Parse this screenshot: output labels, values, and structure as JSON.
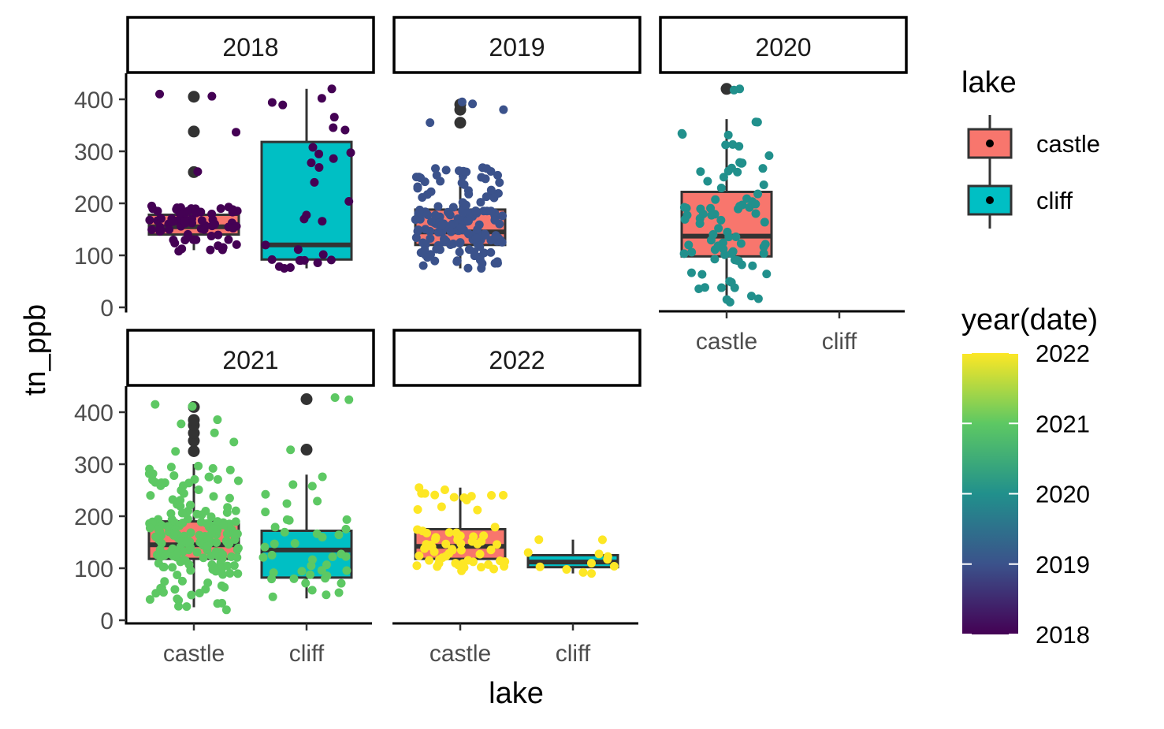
{
  "chart_data": {
    "type": "boxplot",
    "xlabel": "lake",
    "ylabel": "tn_ppb",
    "ylim": [
      0,
      440
    ],
    "yticks": [
      0,
      100,
      200,
      300,
      400
    ],
    "categories": [
      "castle",
      "cliff"
    ],
    "fill_colors": {
      "castle": "#F8766D",
      "cliff": "#00BFC4"
    },
    "color_legend": {
      "title": "year(date)",
      "range": [
        2018,
        2022
      ],
      "ticks": [
        2018,
        2019,
        2020,
        2021,
        2022
      ],
      "palette": [
        "#440154",
        "#3B528B",
        "#21908C",
        "#5DC863",
        "#FDE725"
      ]
    },
    "fill_legend": {
      "title": "lake",
      "entries": [
        {
          "label": "castle",
          "color": "#F8766D"
        },
        {
          "label": "cliff",
          "color": "#00BFC4"
        }
      ]
    },
    "panels": [
      {
        "year": "2018",
        "point_color": "#440154",
        "boxes": [
          {
            "lake": "castle",
            "q1": 140,
            "median": 155,
            "q3": 178,
            "whisker_low": 110,
            "whisker_high": 195,
            "outliers": [
              260,
              338,
              405
            ],
            "n_points": 75,
            "pt_min": 108,
            "pt_max": 410
          },
          {
            "lake": "cliff",
            "q1": 92,
            "median": 120,
            "q3": 318,
            "whisker_low": 75,
            "whisker_high": 420,
            "outliers": [],
            "n_points": 30,
            "pt_min": 75,
            "pt_max": 420
          }
        ]
      },
      {
        "year": "2019",
        "point_color": "#3B528B",
        "boxes": [
          {
            "lake": "castle",
            "q1": 120,
            "median": 145,
            "q3": 188,
            "whisker_low": 75,
            "whisker_high": 270,
            "outliers": [
              355,
              380,
              390
            ],
            "n_points": 160,
            "pt_min": 75,
            "pt_max": 395
          }
        ]
      },
      {
        "year": "2020",
        "point_color": "#21908C",
        "boxes": [
          {
            "lake": "castle",
            "q1": 98,
            "median": 137,
            "q3": 222,
            "whisker_low": 15,
            "whisker_high": 362,
            "outliers": [
              420
            ],
            "n_points": 85,
            "pt_min": 10,
            "pt_max": 420
          }
        ]
      },
      {
        "year": "2021",
        "point_color": "#5DC863",
        "boxes": [
          {
            "lake": "castle",
            "q1": 118,
            "median": 145,
            "q3": 190,
            "whisker_low": 25,
            "whisker_high": 300,
            "outliers": [
              325,
              345,
              360,
              375,
              385,
              410
            ],
            "n_points": 200,
            "pt_min": 20,
            "pt_max": 415
          },
          {
            "lake": "cliff",
            "q1": 82,
            "median": 135,
            "q3": 172,
            "whisker_low": 42,
            "whisker_high": 280,
            "outliers": [
              328,
              425
            ],
            "n_points": 45,
            "pt_min": 45,
            "pt_max": 428
          }
        ]
      },
      {
        "year": "2022",
        "point_color": "#FDE725",
        "boxes": [
          {
            "lake": "castle",
            "q1": 118,
            "median": 142,
            "q3": 175,
            "whisker_low": 98,
            "whisker_high": 255,
            "outliers": [],
            "n_points": 65,
            "pt_min": 95,
            "pt_max": 255
          },
          {
            "lake": "cliff",
            "q1": 102,
            "median": 112,
            "q3": 125,
            "whisker_low": 90,
            "whisker_high": 155,
            "outliers": [],
            "n_points": 12,
            "pt_min": 90,
            "pt_max": 155
          }
        ]
      }
    ]
  }
}
